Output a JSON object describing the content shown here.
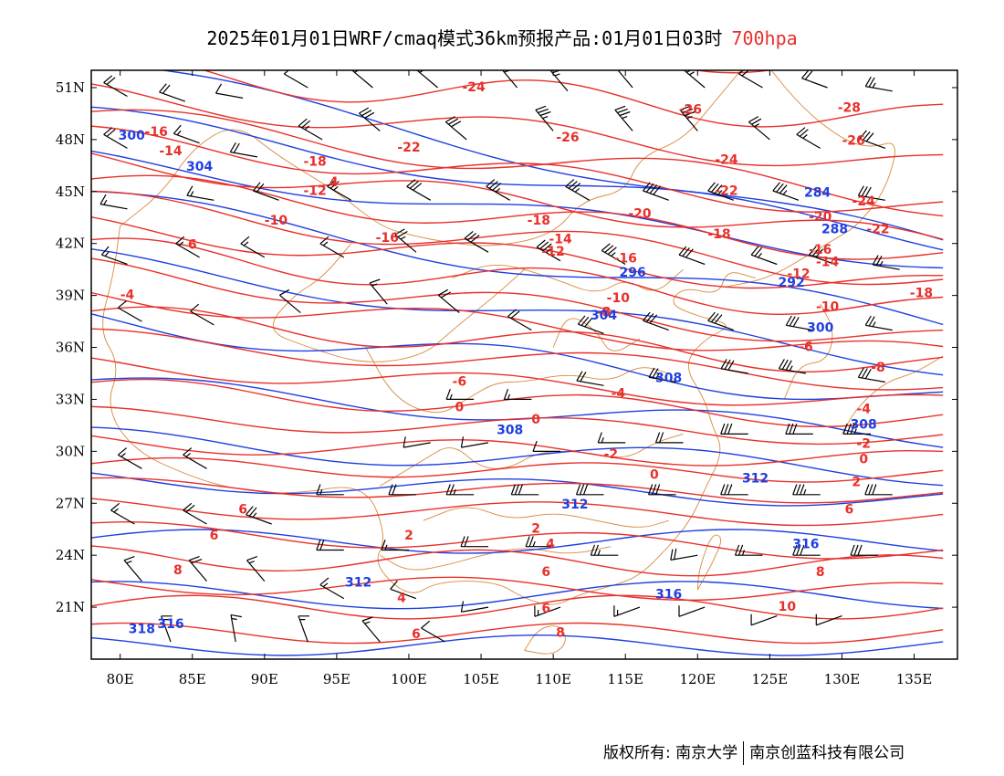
{
  "title": {
    "main": "2025年01月01日WRF/cmaq模式36km预报产品:01月01日03时",
    "level": "700hpa",
    "level_color": "#e8302a"
  },
  "map": {
    "lon_range": [
      78,
      138
    ],
    "lat_range": [
      18,
      52
    ],
    "lon_ticks": [
      80,
      85,
      90,
      95,
      100,
      105,
      110,
      115,
      120,
      125,
      130,
      135
    ],
    "lon_tick_labels": [
      "80E",
      "85E",
      "90E",
      "95E",
      "100E",
      "105E",
      "110E",
      "115E",
      "120E",
      "125E",
      "130E",
      "135E"
    ],
    "lat_ticks": [
      21,
      24,
      27,
      30,
      33,
      36,
      39,
      42,
      45,
      48,
      51
    ],
    "lat_tick_labels": [
      "21N",
      "24N",
      "27N",
      "30N",
      "33N",
      "36N",
      "39N",
      "42N",
      "45N",
      "48N",
      "51N"
    ],
    "colors": {
      "temperature": "#e8302a",
      "height": "#1f3fe0",
      "boundary": "#d8893c",
      "wind": "#000000"
    },
    "temperature_labels": [
      {
        "text": "-24",
        "lon": 104.5,
        "lat": 50.8
      },
      {
        "text": "-16",
        "lon": 82.5,
        "lat": 48.2
      },
      {
        "text": "-14",
        "lon": 83.5,
        "lat": 47.1
      },
      {
        "text": "-22",
        "lon": 100.0,
        "lat": 47.3
      },
      {
        "text": "-18",
        "lon": 93.5,
        "lat": 46.5
      },
      {
        "text": "-12",
        "lon": 93.5,
        "lat": 44.8
      },
      {
        "text": "4",
        "lon": 94.8,
        "lat": 45.3
      },
      {
        "text": "-10",
        "lon": 90.8,
        "lat": 43.1
      },
      {
        "text": "6",
        "lon": 85.0,
        "lat": 41.7
      },
      {
        "text": "-4",
        "lon": 80.5,
        "lat": 38.8
      },
      {
        "text": "-16",
        "lon": 98.5,
        "lat": 42.1
      },
      {
        "text": "-26",
        "lon": 111.0,
        "lat": 47.9
      },
      {
        "text": "-26",
        "lon": 119.5,
        "lat": 49.5
      },
      {
        "text": "-24",
        "lon": 122.0,
        "lat": 46.6
      },
      {
        "text": "-28",
        "lon": 130.5,
        "lat": 49.6
      },
      {
        "text": "-26",
        "lon": 130.8,
        "lat": 47.7
      },
      {
        "text": "-22",
        "lon": 122.0,
        "lat": 44.8
      },
      {
        "text": "-24",
        "lon": 131.5,
        "lat": 44.2
      },
      {
        "text": "-20",
        "lon": 116.0,
        "lat": 43.5
      },
      {
        "text": "-18",
        "lon": 109.0,
        "lat": 43.1
      },
      {
        "text": "-20",
        "lon": 128.5,
        "lat": 43.3
      },
      {
        "text": "-22",
        "lon": 132.5,
        "lat": 42.6
      },
      {
        "text": "-18",
        "lon": 121.5,
        "lat": 42.3
      },
      {
        "text": "-14",
        "lon": 110.5,
        "lat": 42.0
      },
      {
        "text": "-12",
        "lon": 110.0,
        "lat": 41.3
      },
      {
        "text": "-16",
        "lon": 115.0,
        "lat": 40.9
      },
      {
        "text": "-16",
        "lon": 128.5,
        "lat": 41.4
      },
      {
        "text": "-14",
        "lon": 129.0,
        "lat": 40.7
      },
      {
        "text": "-12",
        "lon": 127.0,
        "lat": 40.0
      },
      {
        "text": "-10",
        "lon": 114.5,
        "lat": 38.6
      },
      {
        "text": "-8",
        "lon": 113.5,
        "lat": 37.8
      },
      {
        "text": "-18",
        "lon": 135.5,
        "lat": 38.9
      },
      {
        "text": "-10",
        "lon": 129.0,
        "lat": 38.1
      },
      {
        "text": "-6",
        "lon": 127.5,
        "lat": 35.8
      },
      {
        "text": "-8",
        "lon": 132.5,
        "lat": 34.6
      },
      {
        "text": "-6",
        "lon": 103.5,
        "lat": 33.8
      },
      {
        "text": "-4",
        "lon": 114.5,
        "lat": 33.1
      },
      {
        "text": "-4",
        "lon": 131.5,
        "lat": 32.2
      },
      {
        "text": "0",
        "lon": 103.5,
        "lat": 32.3
      },
      {
        "text": "0",
        "lon": 108.8,
        "lat": 31.6
      },
      {
        "text": "-2",
        "lon": 114.0,
        "lat": 29.6
      },
      {
        "text": "-2",
        "lon": 131.5,
        "lat": 30.2
      },
      {
        "text": "0",
        "lon": 131.5,
        "lat": 29.3
      },
      {
        "text": "0",
        "lon": 117.0,
        "lat": 28.4
      },
      {
        "text": "2",
        "lon": 131.0,
        "lat": 28.0
      },
      {
        "text": "6",
        "lon": 88.5,
        "lat": 26.4
      },
      {
        "text": "6",
        "lon": 130.5,
        "lat": 26.4
      },
      {
        "text": "6",
        "lon": 86.5,
        "lat": 24.9
      },
      {
        "text": "2",
        "lon": 100.0,
        "lat": 24.9
      },
      {
        "text": "2",
        "lon": 108.8,
        "lat": 25.3
      },
      {
        "text": "4",
        "lon": 109.8,
        "lat": 24.4
      },
      {
        "text": "8",
        "lon": 84.0,
        "lat": 22.9
      },
      {
        "text": "8",
        "lon": 128.5,
        "lat": 22.8
      },
      {
        "text": "6",
        "lon": 109.5,
        "lat": 22.8
      },
      {
        "text": "4",
        "lon": 99.5,
        "lat": 21.3
      },
      {
        "text": "6",
        "lon": 109.5,
        "lat": 20.7
      },
      {
        "text": "8",
        "lon": 110.5,
        "lat": 19.3
      },
      {
        "text": "6",
        "lon": 100.5,
        "lat": 19.2
      },
      {
        "text": "10",
        "lon": 126.2,
        "lat": 20.8
      }
    ],
    "height_labels": [
      {
        "text": "300",
        "lon": 80.8,
        "lat": 48.0
      },
      {
        "text": "304",
        "lon": 85.5,
        "lat": 46.2
      },
      {
        "text": "284",
        "lon": 128.3,
        "lat": 44.7
      },
      {
        "text": "288",
        "lon": 129.5,
        "lat": 42.6
      },
      {
        "text": "292",
        "lon": 126.5,
        "lat": 39.5
      },
      {
        "text": "296",
        "lon": 115.5,
        "lat": 40.1
      },
      {
        "text": "300",
        "lon": 128.5,
        "lat": 36.9
      },
      {
        "text": "304",
        "lon": 113.5,
        "lat": 37.6
      },
      {
        "text": "308",
        "lon": 118.0,
        "lat": 34.0
      },
      {
        "text": "308",
        "lon": 107.0,
        "lat": 31.0
      },
      {
        "text": "308",
        "lon": 131.5,
        "lat": 31.3
      },
      {
        "text": "312",
        "lon": 124.0,
        "lat": 28.2
      },
      {
        "text": "312",
        "lon": 111.5,
        "lat": 26.7
      },
      {
        "text": "312",
        "lon": 96.5,
        "lat": 22.2
      },
      {
        "text": "316",
        "lon": 127.5,
        "lat": 24.4
      },
      {
        "text": "316",
        "lon": 118.0,
        "lat": 21.5
      },
      {
        "text": "316",
        "lon": 83.5,
        "lat": 19.8
      },
      {
        "text": "318",
        "lon": 81.5,
        "lat": 19.5
      }
    ],
    "wind_barbs": [
      {
        "lon": 80.5,
        "lat": 50.5,
        "speed": 20,
        "dir": 300
      },
      {
        "lon": 84.5,
        "lat": 50.2,
        "speed": 20,
        "dir": 290
      },
      {
        "lon": 88.5,
        "lat": 50.4,
        "speed": 10,
        "dir": 280
      },
      {
        "lon": 93.0,
        "lat": 51.0,
        "speed": 10,
        "dir": 300
      },
      {
        "lon": 97.5,
        "lat": 51.0,
        "speed": 15,
        "dir": 310
      },
      {
        "lon": 102.0,
        "lat": 51.0,
        "speed": 20,
        "dir": 310
      },
      {
        "lon": 107.5,
        "lat": 51.0,
        "speed": 25,
        "dir": 320
      },
      {
        "lon": 111.0,
        "lat": 50.8,
        "speed": 25,
        "dir": 320
      },
      {
        "lon": 115.5,
        "lat": 51.0,
        "speed": 20,
        "dir": 320
      },
      {
        "lon": 120.5,
        "lat": 51.0,
        "speed": 25,
        "dir": 310
      },
      {
        "lon": 124.5,
        "lat": 51.0,
        "speed": 20,
        "dir": 300
      },
      {
        "lon": 129.0,
        "lat": 51.0,
        "speed": 20,
        "dir": 290
      },
      {
        "lon": 133.5,
        "lat": 50.8,
        "speed": 25,
        "dir": 280
      },
      {
        "lon": 80.5,
        "lat": 47.5,
        "speed": 20,
        "dir": 300
      },
      {
        "lon": 85.5,
        "lat": 47.8,
        "speed": 15,
        "dir": 290
      },
      {
        "lon": 89.5,
        "lat": 47.0,
        "speed": 20,
        "dir": 280
      },
      {
        "lon": 94.0,
        "lat": 48.0,
        "speed": 25,
        "dir": 300
      },
      {
        "lon": 98.0,
        "lat": 48.5,
        "speed": 30,
        "dir": 310
      },
      {
        "lon": 104.0,
        "lat": 48.0,
        "speed": 30,
        "dir": 310
      },
      {
        "lon": 110.0,
        "lat": 48.5,
        "speed": 35,
        "dir": 320
      },
      {
        "lon": 115.5,
        "lat": 48.5,
        "speed": 35,
        "dir": 320
      },
      {
        "lon": 120.0,
        "lat": 48.5,
        "speed": 35,
        "dir": 320
      },
      {
        "lon": 125.0,
        "lat": 48.0,
        "speed": 25,
        "dir": 310
      },
      {
        "lon": 128.5,
        "lat": 47.5,
        "speed": 25,
        "dir": 300
      },
      {
        "lon": 133.0,
        "lat": 47.5,
        "speed": 30,
        "dir": 290
      },
      {
        "lon": 80.5,
        "lat": 44.0,
        "speed": 15,
        "dir": 280
      },
      {
        "lon": 86.5,
        "lat": 44.5,
        "speed": 15,
        "dir": 280
      },
      {
        "lon": 91.0,
        "lat": 44.5,
        "speed": 20,
        "dir": 290
      },
      {
        "lon": 96.0,
        "lat": 44.5,
        "speed": 25,
        "dir": 300
      },
      {
        "lon": 101.5,
        "lat": 44.5,
        "speed": 30,
        "dir": 300
      },
      {
        "lon": 107.0,
        "lat": 44.5,
        "speed": 35,
        "dir": 300
      },
      {
        "lon": 112.5,
        "lat": 44.5,
        "speed": 35,
        "dir": 300
      },
      {
        "lon": 118.0,
        "lat": 44.5,
        "speed": 40,
        "dir": 290
      },
      {
        "lon": 122.5,
        "lat": 44.5,
        "speed": 35,
        "dir": 290
      },
      {
        "lon": 127.0,
        "lat": 44.5,
        "speed": 35,
        "dir": 290
      },
      {
        "lon": 133.0,
        "lat": 44.5,
        "speed": 30,
        "dir": 280
      },
      {
        "lon": 80.5,
        "lat": 40.8,
        "speed": 15,
        "dir": 290
      },
      {
        "lon": 85.5,
        "lat": 41.2,
        "speed": 15,
        "dir": 300
      },
      {
        "lon": 90.0,
        "lat": 41.2,
        "speed": 15,
        "dir": 300
      },
      {
        "lon": 95.5,
        "lat": 41.2,
        "speed": 15,
        "dir": 300
      },
      {
        "lon": 100.5,
        "lat": 41.5,
        "speed": 25,
        "dir": 310
      },
      {
        "lon": 105.5,
        "lat": 41.5,
        "speed": 30,
        "dir": 300
      },
      {
        "lon": 110.5,
        "lat": 41.0,
        "speed": 35,
        "dir": 300
      },
      {
        "lon": 115.0,
        "lat": 40.8,
        "speed": 35,
        "dir": 300
      },
      {
        "lon": 120.5,
        "lat": 40.8,
        "speed": 30,
        "dir": 290
      },
      {
        "lon": 125.5,
        "lat": 40.8,
        "speed": 25,
        "dir": 290
      },
      {
        "lon": 129.5,
        "lat": 40.8,
        "speed": 30,
        "dir": 290
      },
      {
        "lon": 134.0,
        "lat": 40.5,
        "speed": 25,
        "dir": 280
      },
      {
        "lon": 81.5,
        "lat": 37.5,
        "speed": 10,
        "dir": 300
      },
      {
        "lon": 86.5,
        "lat": 37.3,
        "speed": 10,
        "dir": 300
      },
      {
        "lon": 92.5,
        "lat": 38.0,
        "speed": 10,
        "dir": 310
      },
      {
        "lon": 98.5,
        "lat": 38.5,
        "speed": 15,
        "dir": 320
      },
      {
        "lon": 103.5,
        "lat": 38.0,
        "speed": 20,
        "dir": 310
      },
      {
        "lon": 108.5,
        "lat": 37.0,
        "speed": 20,
        "dir": 300
      },
      {
        "lon": 113.5,
        "lat": 36.8,
        "speed": 30,
        "dir": 290
      },
      {
        "lon": 118.0,
        "lat": 37.0,
        "speed": 30,
        "dir": 290
      },
      {
        "lon": 122.5,
        "lat": 37.0,
        "speed": 30,
        "dir": 290
      },
      {
        "lon": 128.0,
        "lat": 37.0,
        "speed": 30,
        "dir": 280
      },
      {
        "lon": 133.5,
        "lat": 37.0,
        "speed": 25,
        "dir": 280
      },
      {
        "lon": 113.5,
        "lat": 33.8,
        "speed": 20,
        "dir": 280
      },
      {
        "lon": 118.5,
        "lat": 34.0,
        "speed": 25,
        "dir": 280
      },
      {
        "lon": 123.5,
        "lat": 34.5,
        "speed": 30,
        "dir": 280
      },
      {
        "lon": 127.5,
        "lat": 34.5,
        "speed": 35,
        "dir": 280
      },
      {
        "lon": 133.0,
        "lat": 34.0,
        "speed": 30,
        "dir": 280
      },
      {
        "lon": 104.5,
        "lat": 33.0,
        "speed": 15,
        "dir": 270
      },
      {
        "lon": 108.5,
        "lat": 33.0,
        "speed": 15,
        "dir": 270
      },
      {
        "lon": 101.5,
        "lat": 30.5,
        "speed": 10,
        "dir": 260
      },
      {
        "lon": 105.5,
        "lat": 30.5,
        "speed": 10,
        "dir": 260
      },
      {
        "lon": 110.5,
        "lat": 30.0,
        "speed": 10,
        "dir": 270
      },
      {
        "lon": 115.0,
        "lat": 30.5,
        "speed": 15,
        "dir": 270
      },
      {
        "lon": 119.0,
        "lat": 30.5,
        "speed": 20,
        "dir": 270
      },
      {
        "lon": 123.5,
        "lat": 31.0,
        "speed": 30,
        "dir": 270
      },
      {
        "lon": 128.0,
        "lat": 31.0,
        "speed": 30,
        "dir": 270
      },
      {
        "lon": 132.0,
        "lat": 31.0,
        "speed": 35,
        "dir": 270
      },
      {
        "lon": 81.5,
        "lat": 29.0,
        "speed": 15,
        "dir": 300
      },
      {
        "lon": 86.0,
        "lat": 29.0,
        "speed": 15,
        "dir": 300
      },
      {
        "lon": 95.5,
        "lat": 27.5,
        "speed": 15,
        "dir": 270
      },
      {
        "lon": 100.5,
        "lat": 27.5,
        "speed": 20,
        "dir": 270
      },
      {
        "lon": 104.5,
        "lat": 27.5,
        "speed": 25,
        "dir": 270
      },
      {
        "lon": 109.0,
        "lat": 27.5,
        "speed": 30,
        "dir": 270
      },
      {
        "lon": 113.5,
        "lat": 27.5,
        "speed": 30,
        "dir": 270
      },
      {
        "lon": 118.5,
        "lat": 27.5,
        "speed": 30,
        "dir": 270
      },
      {
        "lon": 123.5,
        "lat": 27.5,
        "speed": 30,
        "dir": 270
      },
      {
        "lon": 128.5,
        "lat": 27.5,
        "speed": 35,
        "dir": 270
      },
      {
        "lon": 133.5,
        "lat": 27.5,
        "speed": 30,
        "dir": 270
      },
      {
        "lon": 81.0,
        "lat": 25.8,
        "speed": 15,
        "dir": 300
      },
      {
        "lon": 86.0,
        "lat": 25.8,
        "speed": 20,
        "dir": 300
      },
      {
        "lon": 90.5,
        "lat": 25.8,
        "speed": 25,
        "dir": 290
      },
      {
        "lon": 95.5,
        "lat": 24.3,
        "speed": 20,
        "dir": 270
      },
      {
        "lon": 100.0,
        "lat": 24.3,
        "speed": 15,
        "dir": 270
      },
      {
        "lon": 105.5,
        "lat": 24.5,
        "speed": 20,
        "dir": 270
      },
      {
        "lon": 110.0,
        "lat": 24.5,
        "speed": 25,
        "dir": 270
      },
      {
        "lon": 114.5,
        "lat": 24.0,
        "speed": 25,
        "dir": 270
      },
      {
        "lon": 120.0,
        "lat": 24.0,
        "speed": 20,
        "dir": 260
      },
      {
        "lon": 124.5,
        "lat": 24.0,
        "speed": 25,
        "dir": 270
      },
      {
        "lon": 128.5,
        "lat": 24.0,
        "speed": 30,
        "dir": 270
      },
      {
        "lon": 132.5,
        "lat": 24.0,
        "speed": 30,
        "dir": 270
      },
      {
        "lon": 81.5,
        "lat": 22.5,
        "speed": 15,
        "dir": 320
      },
      {
        "lon": 86.0,
        "lat": 22.5,
        "speed": 20,
        "dir": 320
      },
      {
        "lon": 90.0,
        "lat": 22.5,
        "speed": 15,
        "dir": 320
      },
      {
        "lon": 95.5,
        "lat": 21.5,
        "speed": 15,
        "dir": 300
      },
      {
        "lon": 100.5,
        "lat": 21.5,
        "speed": 10,
        "dir": 290
      },
      {
        "lon": 105.5,
        "lat": 21.0,
        "speed": 10,
        "dir": 260
      },
      {
        "lon": 110.5,
        "lat": 21.0,
        "speed": 15,
        "dir": 250
      },
      {
        "lon": 116.0,
        "lat": 21.0,
        "speed": 15,
        "dir": 250
      },
      {
        "lon": 120.5,
        "lat": 21.0,
        "speed": 10,
        "dir": 250
      },
      {
        "lon": 125.5,
        "lat": 20.5,
        "speed": 10,
        "dir": 250
      },
      {
        "lon": 130.0,
        "lat": 20.5,
        "speed": 10,
        "dir": 250
      },
      {
        "lon": 83.5,
        "lat": 19.0,
        "speed": 15,
        "dir": 340
      },
      {
        "lon": 88.0,
        "lat": 19.0,
        "speed": 15,
        "dir": 350
      },
      {
        "lon": 93.0,
        "lat": 19.0,
        "speed": 15,
        "dir": 340
      },
      {
        "lon": 98.0,
        "lat": 19.0,
        "speed": 15,
        "dir": 320
      },
      {
        "lon": 102.5,
        "lat": 19.0,
        "speed": 10,
        "dir": 300
      }
    ]
  },
  "footer": {
    "copyright": "版权所有: 南京大学",
    "company": "南京创蓝科技有限公司"
  }
}
